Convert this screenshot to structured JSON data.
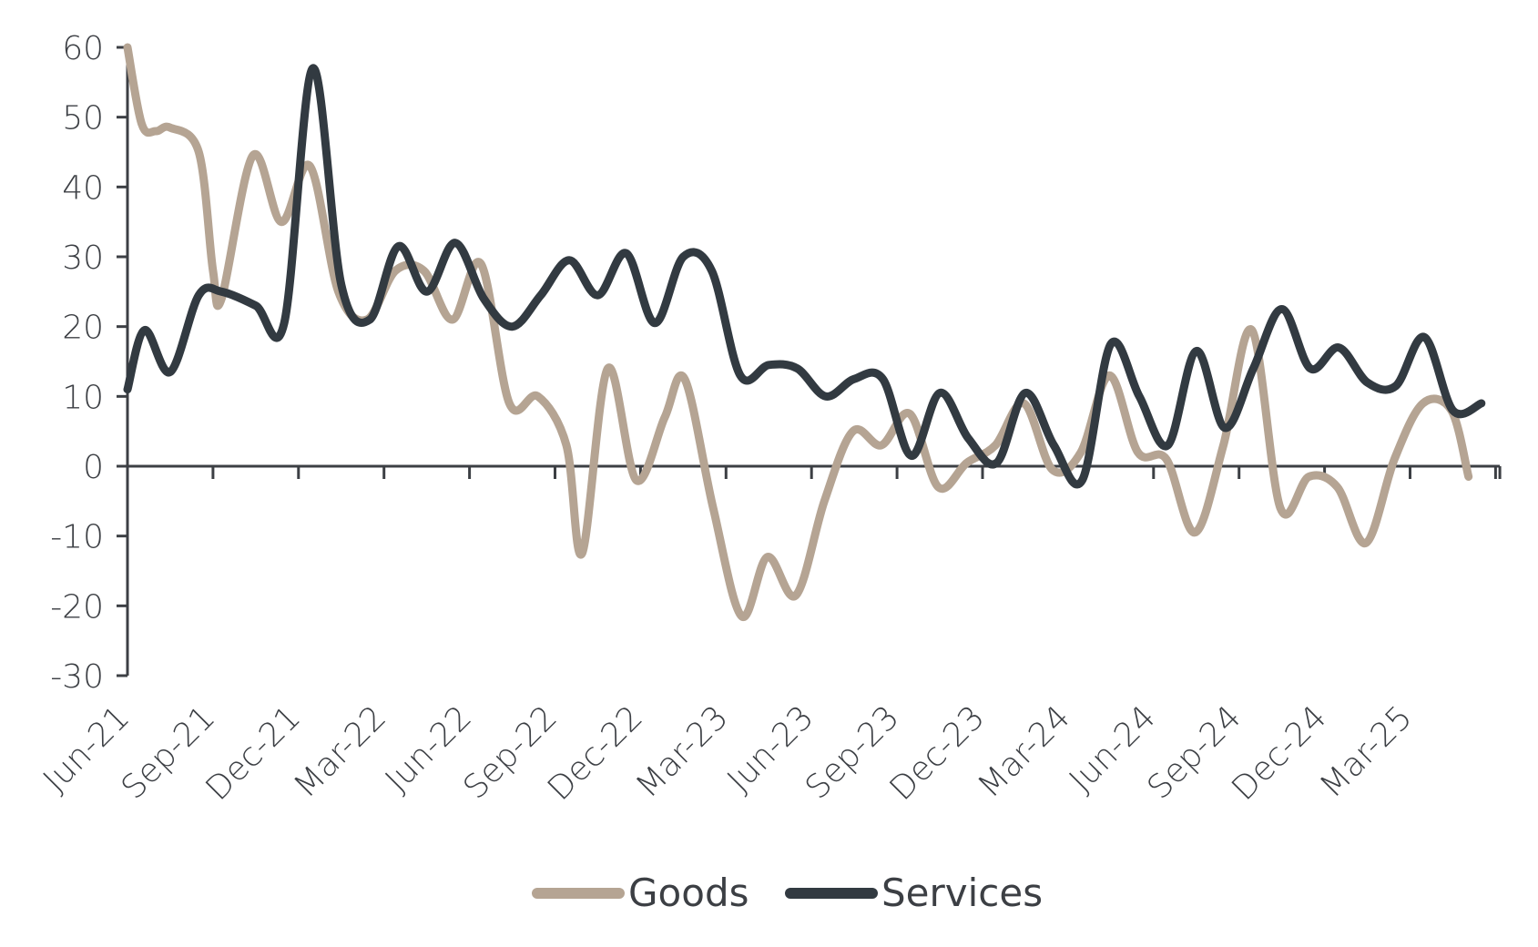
{
  "chart_data": {
    "type": "line",
    "title": "",
    "xlabel": "",
    "ylabel": "",
    "ylim": [
      -30,
      60
    ],
    "yticks": [
      60,
      50,
      40,
      30,
      20,
      10,
      0,
      -10,
      -20,
      -30
    ],
    "ytick_labels": [
      "60",
      "50",
      "40",
      "30",
      "20",
      "10",
      "0",
      "-10",
      "-20",
      "-30"
    ],
    "x_start": "Jun-21",
    "x": [
      "Jun-21",
      "Jul-21",
      "Aug-21",
      "Sep-21",
      "Oct-21",
      "Nov-21",
      "Dec-21",
      "Jan-22",
      "Feb-22",
      "Mar-22",
      "Apr-22",
      "May-22",
      "Jun-22",
      "Jul-22",
      "Aug-22",
      "Sep-22",
      "Oct-22",
      "Nov-22",
      "Dec-22",
      "Jan-23",
      "Feb-23",
      "Mar-23",
      "Apr-23",
      "May-23",
      "Jun-23",
      "Jul-23",
      "Aug-23",
      "Sep-23",
      "Oct-23",
      "Nov-23",
      "Dec-23",
      "Jan-24",
      "Feb-24",
      "Mar-24",
      "Apr-24",
      "May-24",
      "Jun-24",
      "Jul-24",
      "Aug-24",
      "Sep-24",
      "Oct-24",
      "Nov-24",
      "Dec-24",
      "Jan-25",
      "Feb-25",
      "Mar-25",
      "Apr-25",
      "May-25"
    ],
    "xtick_labels": [
      "Jun-21",
      "Sep-21",
      "Dec-21",
      "Mar-22",
      "Jun-22",
      "Sep-22",
      "Dec-22",
      "Mar-23",
      "Jun-23",
      "Sep-23",
      "Dec-23",
      "Mar-24",
      "Jun-24",
      "Sep-24",
      "Dec-24",
      "Mar-25"
    ],
    "grid": false,
    "legend_position": "bottom-center",
    "series": [
      {
        "name": "Goods",
        "color": "#b5a493",
        "values": [
          [
            0,
            60
          ],
          [
            0.5,
            49
          ],
          [
            1,
            48
          ],
          [
            1.5,
            48.5
          ],
          [
            2.5,
            45
          ],
          [
            3,
            28
          ],
          [
            3.3,
            24
          ],
          [
            4.4,
            44.5
          ],
          [
            5.4,
            35
          ],
          [
            6.4,
            43
          ],
          [
            7.4,
            25
          ],
          [
            8.4,
            21
          ],
          [
            9.4,
            28
          ],
          [
            10.4,
            28
          ],
          [
            11.4,
            21
          ],
          [
            12.4,
            29
          ],
          [
            13.4,
            9
          ],
          [
            14.4,
            10
          ],
          [
            15.4,
            3
          ],
          [
            15.95,
            -12.5
          ],
          [
            16.85,
            14
          ],
          [
            17.85,
            -2
          ],
          [
            18.85,
            7
          ],
          [
            19.55,
            12.5
          ],
          [
            20.55,
            -6
          ],
          [
            21.55,
            -21.5
          ],
          [
            22.45,
            -13
          ],
          [
            23.45,
            -18.5
          ],
          [
            24.45,
            -5
          ],
          [
            25.45,
            5
          ],
          [
            26.45,
            3
          ],
          [
            27.45,
            7.5
          ],
          [
            28.45,
            -3
          ],
          [
            29.45,
            0.5
          ],
          [
            30.45,
            3
          ],
          [
            31.45,
            9
          ],
          [
            32.45,
            -0.5
          ],
          [
            33.45,
            2
          ],
          [
            34.45,
            13
          ],
          [
            35.45,
            2
          ],
          [
            36.45,
            1
          ],
          [
            37.45,
            -9.5
          ],
          [
            38.45,
            3
          ],
          [
            39.45,
            19.5
          ],
          [
            40.45,
            -6
          ],
          [
            41.45,
            -1.5
          ],
          [
            42.45,
            -3
          ],
          [
            43.45,
            -11
          ],
          [
            44.45,
            1
          ],
          [
            45.45,
            9
          ],
          [
            46.45,
            8
          ],
          [
            47.05,
            -1.5
          ]
        ]
      },
      {
        "name": "Services",
        "color": "#323a41",
        "values": [
          [
            0,
            11
          ],
          [
            0.6,
            19.5
          ],
          [
            1.5,
            13.5
          ],
          [
            2.5,
            24.5
          ],
          [
            3.3,
            25
          ],
          [
            4.5,
            23
          ],
          [
            5.5,
            20.5
          ],
          [
            6.5,
            57
          ],
          [
            7.5,
            26
          ],
          [
            8.5,
            21
          ],
          [
            9.5,
            31.5
          ],
          [
            10.5,
            25
          ],
          [
            11.5,
            32
          ],
          [
            12.5,
            24
          ],
          [
            13.5,
            20
          ],
          [
            14.5,
            24.5
          ],
          [
            15.5,
            29.5
          ],
          [
            16.5,
            24.5
          ],
          [
            17.5,
            30.5
          ],
          [
            18.5,
            20.5
          ],
          [
            19.5,
            30
          ],
          [
            20.5,
            28
          ],
          [
            21.5,
            13
          ],
          [
            22.5,
            14.5
          ],
          [
            23.5,
            14
          ],
          [
            24.5,
            10
          ],
          [
            25.5,
            12.5
          ],
          [
            26.5,
            12.5
          ],
          [
            27.5,
            1.5
          ],
          [
            28.5,
            10.5
          ],
          [
            29.5,
            4
          ],
          [
            30.5,
            0.5
          ],
          [
            31.5,
            10.5
          ],
          [
            32.5,
            3
          ],
          [
            33.5,
            -2
          ],
          [
            34.5,
            17.5
          ],
          [
            35.5,
            10
          ],
          [
            36.5,
            3
          ],
          [
            37.5,
            16.5
          ],
          [
            38.5,
            5.5
          ],
          [
            39.5,
            14
          ],
          [
            40.5,
            22.5
          ],
          [
            41.5,
            14
          ],
          [
            42.5,
            17
          ],
          [
            43.5,
            12
          ],
          [
            44.5,
            11.5
          ],
          [
            45.5,
            18.5
          ],
          [
            46.5,
            8
          ],
          [
            47.5,
            9
          ]
        ]
      }
    ]
  },
  "legend": {
    "goods_label": "Goods",
    "services_label": "Services"
  }
}
